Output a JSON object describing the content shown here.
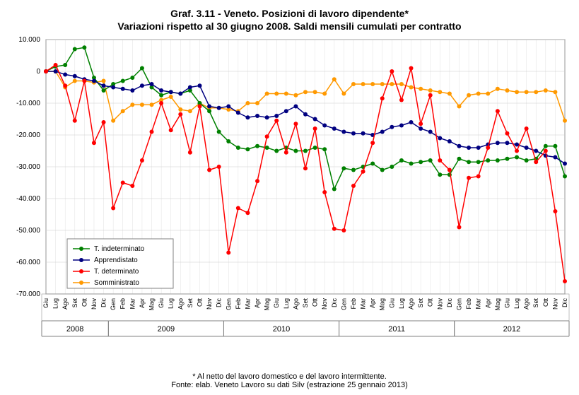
{
  "title_line1": "Graf. 3.11 - Veneto. Posizioni di lavoro dipendente*",
  "title_line2": "Variazioni rispetto al 30 giugno 2008. Saldi mensili cumulati per contratto",
  "title_fontsize": 14,
  "footnote_line1": "* Al netto del lavoro domestico e del lavoro intermittente.",
  "footnote_line2": "Fonte: elab. Veneto Lavoro su dati Silv (estrazione 25 gennaio 2013)",
  "footnote_fontsize": 11,
  "chart": {
    "type": "line",
    "background_color": "#ffffff",
    "grid_color": "#cccccc",
    "axis_color": "#808080",
    "y_axis": {
      "min": -70000,
      "max": 10000,
      "step": 10000,
      "labels": [
        "10.000",
        "0",
        "-10.000",
        "-20.000",
        "-30.000",
        "-40.000",
        "-50.000",
        "-60.000",
        "-70.000"
      ],
      "label_fontsize": 10
    },
    "x_axis": {
      "months": [
        "Giu",
        "Lug",
        "Ago",
        "Set",
        "Ott",
        "Nov",
        "Dic",
        "Gen",
        "Feb",
        "Mar",
        "Apr",
        "Mag",
        "Giu",
        "Lug",
        "Ago",
        "Set",
        "Ott",
        "Nov",
        "Dic",
        "Gen",
        "Feb",
        "Mar",
        "Apr",
        "Mag",
        "Giu",
        "Lug",
        "Ago",
        "Set",
        "Ott",
        "Nov",
        "Dic",
        "Gen",
        "Feb",
        "Mar",
        "Apr",
        "Mag",
        "Giu",
        "Lug",
        "Ago",
        "Set",
        "Ott",
        "Nov",
        "Dic",
        "Gen",
        "Feb",
        "Mar",
        "Apr",
        "Mag",
        "Giu",
        "Lug",
        "Ago",
        "Set",
        "Ott",
        "Nov",
        "Dic"
      ],
      "years": [
        "2008",
        "2009",
        "2010",
        "2011",
        "2012"
      ],
      "year_spans": [
        7,
        12,
        12,
        12,
        12
      ],
      "label_fontsize": 9
    },
    "legend": {
      "position": "bottom-left-inside",
      "fontsize": 10,
      "border_color": "#808080",
      "items": [
        {
          "label": "T. indeterminato",
          "color": "#008000",
          "marker": "circle"
        },
        {
          "label": "Apprendistato",
          "color": "#000080",
          "marker": "circle"
        },
        {
          "label": "T. determinato",
          "color": "#ff0000",
          "marker": "circle"
        },
        {
          "label": "Somministrato",
          "color": "#ff9900",
          "marker": "circle"
        }
      ]
    },
    "series": {
      "t_indeterminato": {
        "color": "#008000",
        "line_width": 1.5,
        "marker_size": 3,
        "values": [
          0,
          1500,
          2000,
          7000,
          7500,
          -2000,
          -6000,
          -4000,
          -3000,
          -2000,
          1000,
          -5000,
          -7500,
          -6500,
          -7000,
          -6000,
          -10000,
          -12500,
          -19000,
          -22000,
          -24000,
          -24500,
          -23500,
          -24000,
          -25000,
          -24000,
          -25000,
          -25000,
          -24000,
          -24500,
          -37000,
          -30500,
          -31000,
          -30000,
          -29000,
          -31000,
          -30000,
          -28000,
          -29000,
          -28500,
          -28000,
          -32500,
          -32500,
          -27500,
          -28500,
          -28500,
          -28000,
          -28000,
          -27500,
          -27000,
          -28000,
          -27500,
          -23500,
          -23500,
          -33000
        ]
      },
      "apprendistato": {
        "color": "#000080",
        "line_width": 1.5,
        "marker_size": 3,
        "values": [
          0,
          0,
          -1000,
          -1500,
          -2500,
          -3000,
          -4500,
          -5000,
          -5500,
          -6000,
          -4500,
          -4000,
          -6000,
          -6500,
          -7000,
          -5000,
          -4500,
          -11000,
          -11500,
          -11000,
          -13000,
          -14500,
          -14000,
          -14500,
          -14000,
          -12500,
          -11000,
          -13500,
          -15000,
          -17000,
          -18000,
          -19000,
          -19500,
          -19500,
          -20000,
          -19000,
          -17500,
          -17000,
          -16000,
          -18000,
          -19000,
          -21000,
          -22000,
          -23500,
          -24000,
          -24000,
          -23000,
          -22500,
          -22500,
          -23000,
          -24000,
          -25000,
          -26500,
          -27000,
          -29000
        ]
      },
      "t_determinato": {
        "color": "#ff0000",
        "line_width": 1.5,
        "marker_size": 3,
        "values": [
          0,
          2000,
          -4500,
          -15500,
          -3000,
          -22500,
          -16000,
          -43000,
          -35000,
          -36000,
          -28000,
          -19000,
          -10000,
          -18500,
          -13500,
          -25500,
          -11000,
          -31000,
          -30000,
          -57000,
          -43000,
          -44500,
          -34500,
          -20500,
          -15500,
          -25500,
          -16500,
          -30500,
          -18000,
          -38000,
          -49500,
          -50000,
          -36000,
          -31500,
          -22500,
          -8500,
          0,
          -9000,
          1000,
          -16500,
          -7500,
          -28000,
          -31000,
          -49000,
          -33500,
          -33000,
          -24000,
          -12500,
          -19500,
          -25000,
          -18000,
          -28500,
          -25000,
          -44000,
          -66000
        ]
      },
      "somministrato": {
        "color": "#ff9900",
        "line_width": 1.5,
        "marker_size": 3,
        "values": [
          0,
          0,
          -5000,
          -3000,
          -3000,
          -3500,
          -3000,
          -15500,
          -12500,
          -10500,
          -10500,
          -10500,
          -9000,
          -8000,
          -12000,
          -12500,
          -10000,
          -11500,
          -11500,
          -12000,
          -12500,
          -10000,
          -10000,
          -7000,
          -7000,
          -7000,
          -7500,
          -6500,
          -6500,
          -7000,
          -2500,
          -7000,
          -4000,
          -4000,
          -4000,
          -4000,
          -4000,
          -4000,
          -5000,
          -5500,
          -6000,
          -6500,
          -7000,
          -11000,
          -7500,
          -7000,
          -7000,
          -5500,
          -6000,
          -6500,
          -6500,
          -6500,
          -6000,
          -6500,
          -15500
        ]
      }
    }
  }
}
